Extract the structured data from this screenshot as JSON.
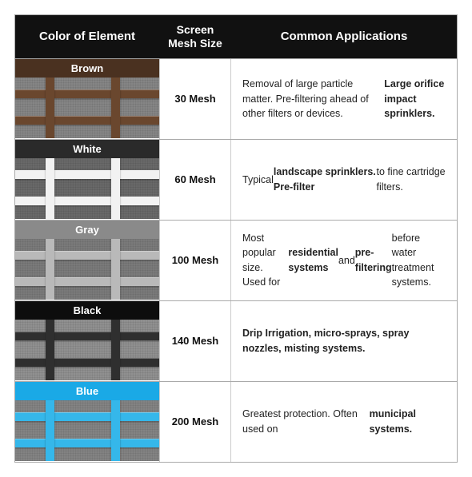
{
  "headers": {
    "color": "Color of Element",
    "mesh": "Screen Mesh Size",
    "app": "Common Applications"
  },
  "rows": [
    {
      "name": "Brown",
      "label_bg": "#4a3120",
      "bar_color": "#6a472e",
      "mesh_bg": "#8e8e8e",
      "mesh": "30 Mesh",
      "app_html": "Removal of large particle matter. Pre-filtering ahead of other filters or devices. <b>Large orifice impact sprinklers.</b>"
    },
    {
      "name": "White",
      "label_bg": "#2a2a2a",
      "bar_color": "#f2f2f2",
      "mesh_bg": "#707070",
      "mesh": "60 Mesh",
      "app_html": "Typical <b>landscape sprinklers. Pre-filter</b> to fine cartridge filters."
    },
    {
      "name": "Gray",
      "label_bg": "#8a8a8a",
      "bar_color": "#b9b9b9",
      "mesh_bg": "#838383",
      "mesh": "100 Mesh",
      "app_html": "Most popular size. Used for <b>residential systems</b> and <b>pre-filtering</b> before water treatment systems."
    },
    {
      "name": "Black",
      "label_bg": "#0d0d0d",
      "bar_color": "#2f2f2f",
      "mesh_bg": "#9a9a9a",
      "mesh": "140 Mesh",
      "app_html": "<b>Drip Irrigation, micro-sprays, spray nozzles, misting systems.</b>"
    },
    {
      "name": "Blue",
      "label_bg": "#1aa9e6",
      "bar_color": "#35b7ea",
      "mesh_bg": "#8c8c8c",
      "mesh": "200 Mesh",
      "app_html": "Greatest protection. Often used on <b>municipal systems.</b>"
    }
  ]
}
